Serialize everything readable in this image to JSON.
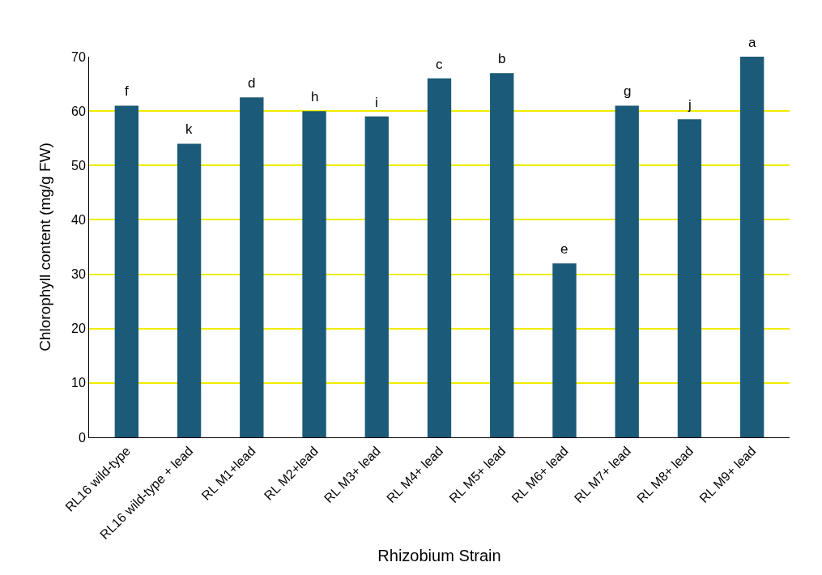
{
  "chart_data": {
    "type": "bar",
    "xlabel": "Rhizobium Strain",
    "ylabel": "Chlorophyll content (mg/g FW)",
    "categories": [
      "RL16 wild-type",
      "RL16 wild-type + lead",
      "RL M1+lead",
      "RL M2+lead",
      "RL M3+ lead",
      "RL M4+ lead",
      "RL M5+ lead",
      "RL M6+ lead",
      "RL M7+ lead",
      "RL M8+ lead",
      "RL M9+ lead"
    ],
    "values": [
      61,
      54,
      62.5,
      60,
      59,
      66,
      67,
      32,
      61,
      58.5,
      70
    ],
    "color": "#1b5a78",
    "ylim": [
      0,
      70
    ],
    "yticks": [
      0,
      10,
      20,
      30,
      40,
      50,
      60,
      70
    ],
    "grid": "y",
    "annotations": [
      {
        "text": "f",
        "x": "RL16 wild-type",
        "y": 61
      },
      {
        "text": "k",
        "x": "RL16 wild-type + lead",
        "y": 54
      },
      {
        "text": "d",
        "x": "RL M1+lead",
        "y": 62.5
      },
      {
        "text": "h",
        "x": "RL M2+lead",
        "y": 60
      },
      {
        "text": "i",
        "x": "RL M3+ lead",
        "y": 59
      },
      {
        "text": "c",
        "x": "RL M4+ lead",
        "y": 66
      },
      {
        "text": "b",
        "x": "RL M5+ lead",
        "y": 67
      },
      {
        "text": "e",
        "x": "RL M6+ lead",
        "y": 32
      },
      {
        "text": "g",
        "x": "RL M7+ lead",
        "y": 61
      },
      {
        "text": "j",
        "x": "RL M8+ lead",
        "y": 58.5
      },
      {
        "text": "a",
        "x": "RL M9+ lead",
        "y": 70
      }
    ]
  }
}
